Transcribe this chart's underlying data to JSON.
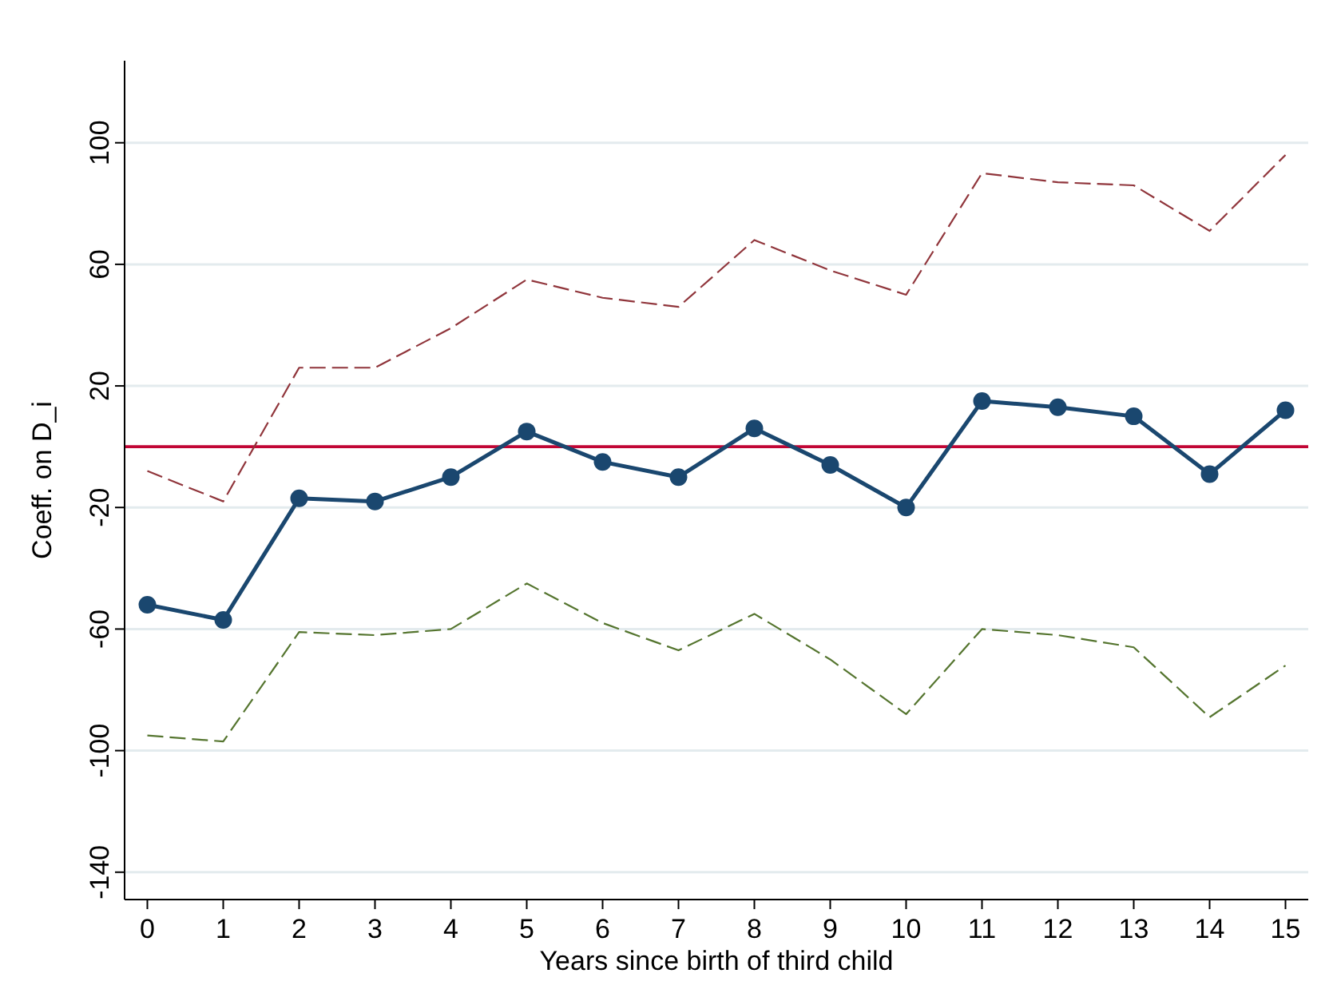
{
  "chart_data": {
    "type": "line",
    "xlabel": "Years since birth of third child",
    "ylabel": "Coeff. on D_i",
    "x": [
      0,
      1,
      2,
      3,
      4,
      5,
      6,
      7,
      8,
      9,
      10,
      11,
      12,
      13,
      14,
      15
    ],
    "series": [
      {
        "color": "#1a476f",
        "marker": "circle",
        "line_style": "solid",
        "values": [
          -52,
          -57,
          -17,
          -18,
          -10,
          5,
          -5,
          -10,
          6,
          -6,
          -20,
          15,
          13,
          10,
          -9,
          12
        ]
      },
      {
        "color": "#90353b",
        "marker": "none",
        "line_style": "dashed",
        "values": [
          -8,
          -18,
          26,
          26,
          39,
          55,
          49,
          46,
          68,
          58,
          50,
          90,
          87,
          86,
          71,
          96
        ]
      },
      {
        "color": "#55752f",
        "marker": "none",
        "line_style": "dashed",
        "values": [
          -95,
          -97,
          -61,
          -62,
          -60,
          -45,
          -58,
          -67,
          -55,
          -70,
          -88,
          -60,
          -62,
          -66,
          -89,
          -72
        ]
      }
    ],
    "xlim": [
      -0.3,
      15.3
    ],
    "ylim": [
      -149,
      127
    ],
    "xticks": [
      0,
      1,
      2,
      3,
      4,
      5,
      6,
      7,
      8,
      9,
      10,
      11,
      12,
      13,
      14,
      15
    ],
    "yticks": [
      -140,
      -100,
      -60,
      -20,
      20,
      60,
      100
    ],
    "grid": "y",
    "ref_lines": [
      {
        "axis": "y",
        "value": 0,
        "color": "#c10534"
      }
    ]
  }
}
